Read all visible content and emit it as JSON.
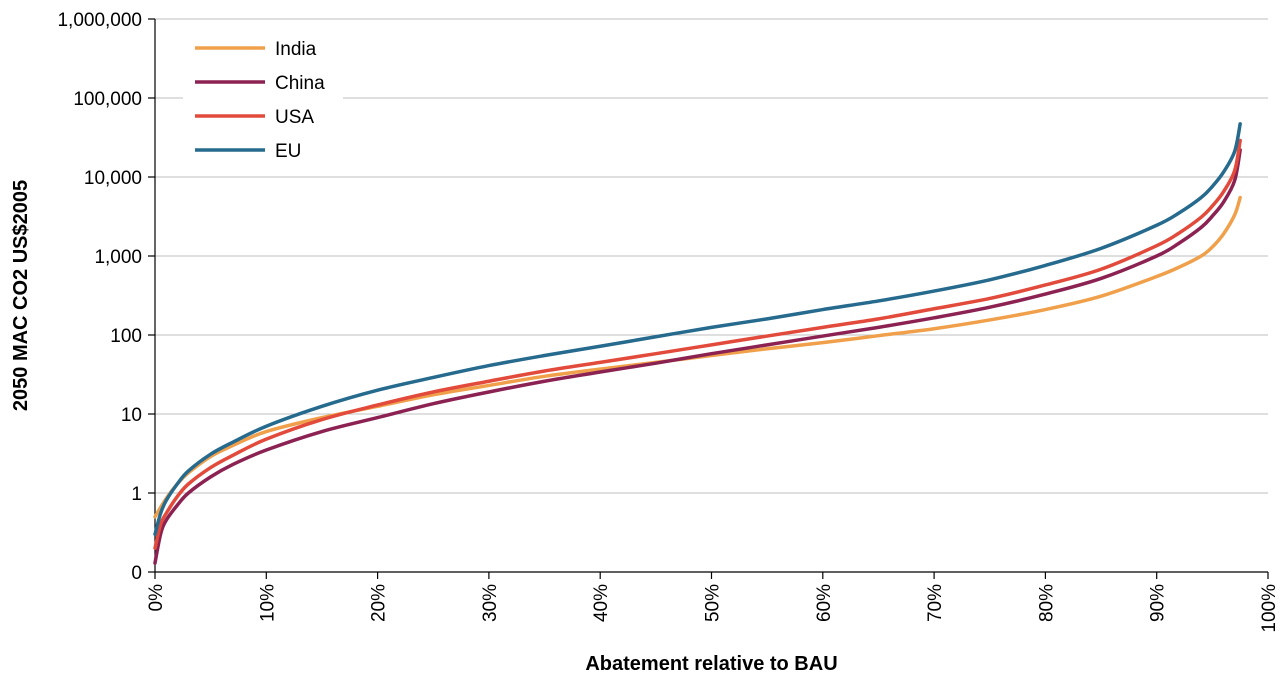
{
  "chart_data": {
    "type": "line",
    "title": "",
    "xlabel": "Abatement relative to BAU",
    "ylabel": "2050 MAC CO2 US$2005",
    "y_scale": "log",
    "ylim": [
      0.1,
      1000000
    ],
    "xlim": [
      0,
      100
    ],
    "grid": "horizontal",
    "legend_position": "top-left",
    "x_tick_labels": [
      "0%",
      "10%",
      "20%",
      "30%",
      "40%",
      "50%",
      "60%",
      "70%",
      "80%",
      "90%",
      "100%"
    ],
    "x_tick_values": [
      0,
      10,
      20,
      30,
      40,
      50,
      60,
      70,
      80,
      90,
      100
    ],
    "y_tick_labels": [
      "0",
      "1",
      "10",
      "100",
      "1,000",
      "10,000",
      "100,000",
      "1,000,000"
    ],
    "y_tick_values": [
      0.1,
      1,
      10,
      100,
      1000,
      10000,
      100000,
      1000000
    ],
    "series": [
      {
        "name": "India",
        "color": "#F0A04B",
        "x": [
          0,
          1,
          2,
          3,
          5,
          7,
          10,
          15,
          20,
          25,
          30,
          35,
          40,
          45,
          50,
          55,
          60,
          65,
          70,
          75,
          80,
          85,
          90,
          92,
          94,
          95,
          96,
          97,
          97.5
        ],
        "y": [
          0.5,
          0.85,
          1.3,
          1.8,
          2.9,
          4.0,
          6.0,
          9.0,
          12.5,
          17.5,
          23,
          30,
          37,
          45,
          55,
          67,
          80,
          98,
          120,
          155,
          210,
          310,
          550,
          720,
          1000,
          1300,
          1900,
          3300,
          5500
        ]
      },
      {
        "name": "China",
        "color": "#8B2252",
        "x": [
          0,
          0.5,
          1,
          2,
          3,
          5,
          7,
          10,
          15,
          20,
          25,
          30,
          35,
          40,
          45,
          50,
          55,
          60,
          65,
          70,
          75,
          80,
          85,
          90,
          92,
          94,
          95,
          96,
          97,
          97.5
        ],
        "y": [
          0.13,
          0.3,
          0.45,
          0.7,
          1.0,
          1.6,
          2.3,
          3.5,
          6.0,
          9.0,
          13.5,
          19,
          26,
          34,
          44,
          58,
          75,
          97,
          125,
          165,
          225,
          330,
          520,
          1000,
          1450,
          2300,
          3200,
          4800,
          9000,
          22000
        ]
      },
      {
        "name": "USA",
        "color": "#E24A3B",
        "x": [
          0,
          0.5,
          1,
          2,
          3,
          5,
          7,
          10,
          15,
          20,
          25,
          30,
          35,
          40,
          45,
          50,
          55,
          60,
          65,
          70,
          75,
          80,
          85,
          90,
          92,
          94,
          95,
          96,
          97,
          97.5
        ],
        "y": [
          0.2,
          0.4,
          0.55,
          0.9,
          1.3,
          2.1,
          3.0,
          4.8,
          8.5,
          13,
          19,
          26,
          35,
          45,
          58,
          75,
          97,
          125,
          160,
          215,
          290,
          430,
          680,
          1350,
          1950,
          3100,
          4300,
          6500,
          12000,
          29000
        ]
      },
      {
        "name": "EU",
        "color": "#266A8E",
        "x": [
          0,
          0.5,
          1,
          2,
          3,
          5,
          7,
          10,
          15,
          20,
          25,
          30,
          35,
          40,
          45,
          50,
          55,
          60,
          65,
          70,
          75,
          80,
          85,
          90,
          92,
          94,
          95,
          96,
          97,
          97.5
        ],
        "y": [
          0.3,
          0.55,
          0.8,
          1.3,
          1.9,
          3.1,
          4.4,
          7.0,
          12.5,
          20,
          29,
          41,
          55,
          72,
          95,
          125,
          160,
          210,
          270,
          360,
          500,
          760,
          1250,
          2450,
          3500,
          5500,
          7600,
          11500,
          21000,
          47000
        ]
      }
    ]
  }
}
